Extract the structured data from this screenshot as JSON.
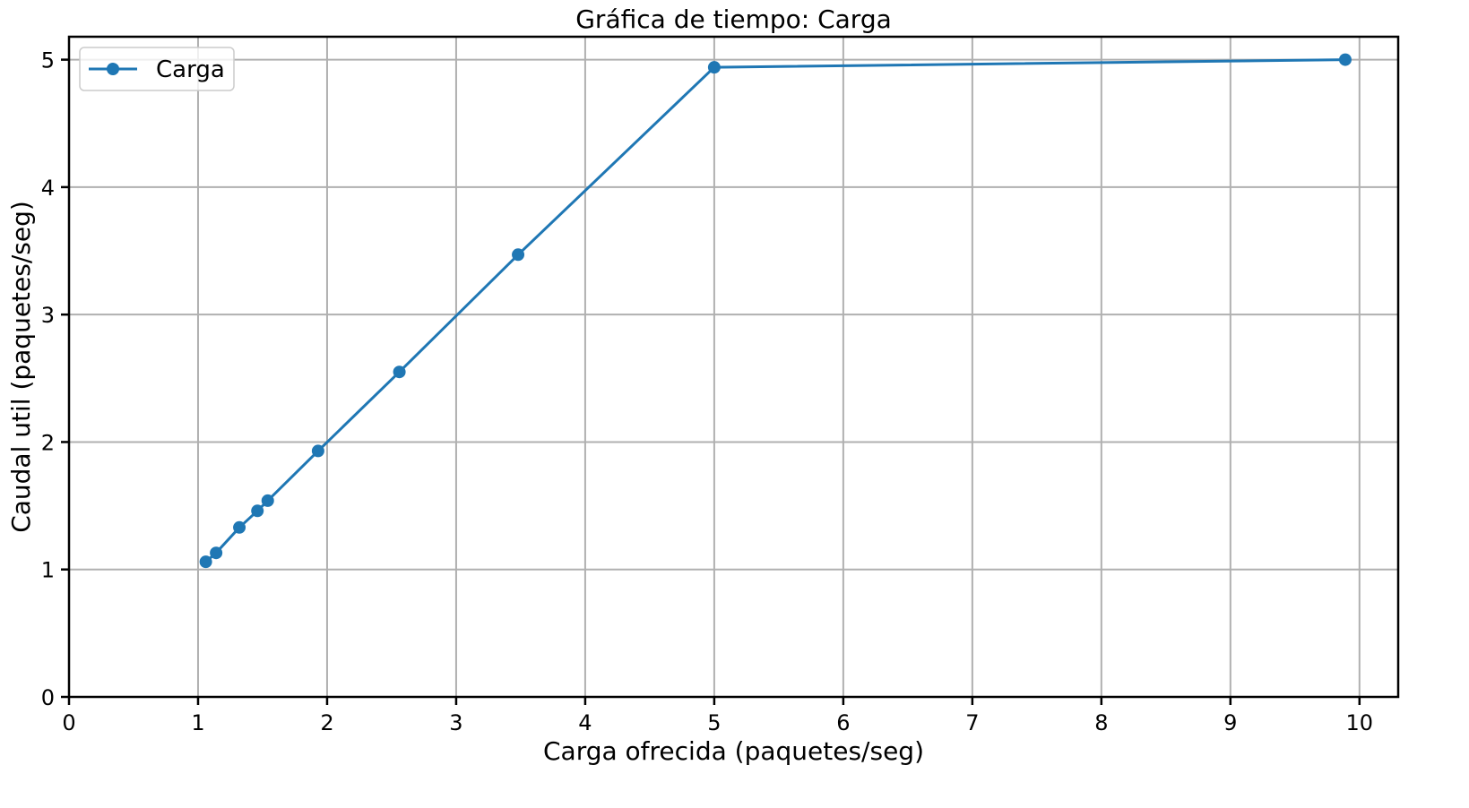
{
  "chart_data": {
    "type": "line",
    "title": "Gráfica de tiempo: Carga",
    "xlabel": "Carga ofrecida (paquetes/seg)",
    "ylabel": "Caudal util (paquetes/seg)",
    "xlim": [
      0,
      10.3
    ],
    "ylim": [
      0,
      5.18
    ],
    "xticks": [
      0,
      1,
      2,
      3,
      4,
      5,
      6,
      7,
      8,
      9,
      10
    ],
    "yticks": [
      0,
      1,
      2,
      3,
      4,
      5
    ],
    "grid": true,
    "legend_position": "top-left",
    "series": [
      {
        "name": "Carga",
        "color": "#1f77b4",
        "marker": "circle",
        "x": [
          1.06,
          1.14,
          1.32,
          1.46,
          1.54,
          1.93,
          2.56,
          3.48,
          5.0,
          9.89
        ],
        "y": [
          1.06,
          1.13,
          1.33,
          1.46,
          1.54,
          1.93,
          2.55,
          3.47,
          4.94,
          5.0
        ]
      }
    ]
  }
}
